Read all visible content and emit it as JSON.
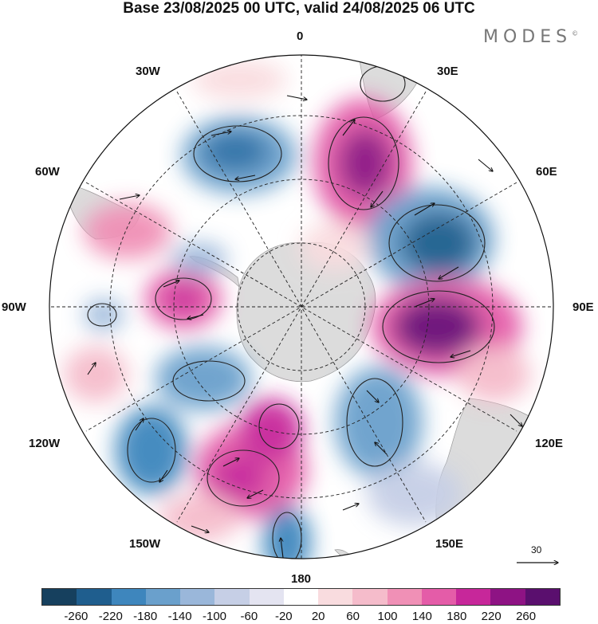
{
  "title": "Base 23/08/2025 00 UTC, valid 24/08/2025 06 UTC",
  "brand": "MODES",
  "brand_mark": "©",
  "longitude_labels": {
    "top": "0",
    "top_right": "30E",
    "upper_right": "60E",
    "right": "90E",
    "lower_right": "120E",
    "bottom_right": "150E",
    "bottom": "180",
    "bottom_left": "150W",
    "lower_left": "120W",
    "left": "90W",
    "upper_left": "60W",
    "top_left": "30W"
  },
  "vector_scale_label": "30",
  "colors": {
    "land": "#dcdcdc",
    "ocean": "#ffffff",
    "colorbar": [
      "#16405e",
      "#1f5e8e",
      "#3e86bd",
      "#6aa0cc",
      "#9ab7da",
      "#c6cfe6",
      "#e4e4f1",
      "#ffffff",
      "#f9dcdf",
      "#f5bccb",
      "#f090b6",
      "#e45ca8",
      "#c7279a",
      "#8e1384",
      "#5a0f6e"
    ]
  },
  "colorbar_ticks": [
    "-260",
    "-220",
    "-180",
    "-140",
    "-100",
    "-60",
    "-20",
    "20",
    "60",
    "100",
    "140",
    "180",
    "220",
    "260"
  ]
}
